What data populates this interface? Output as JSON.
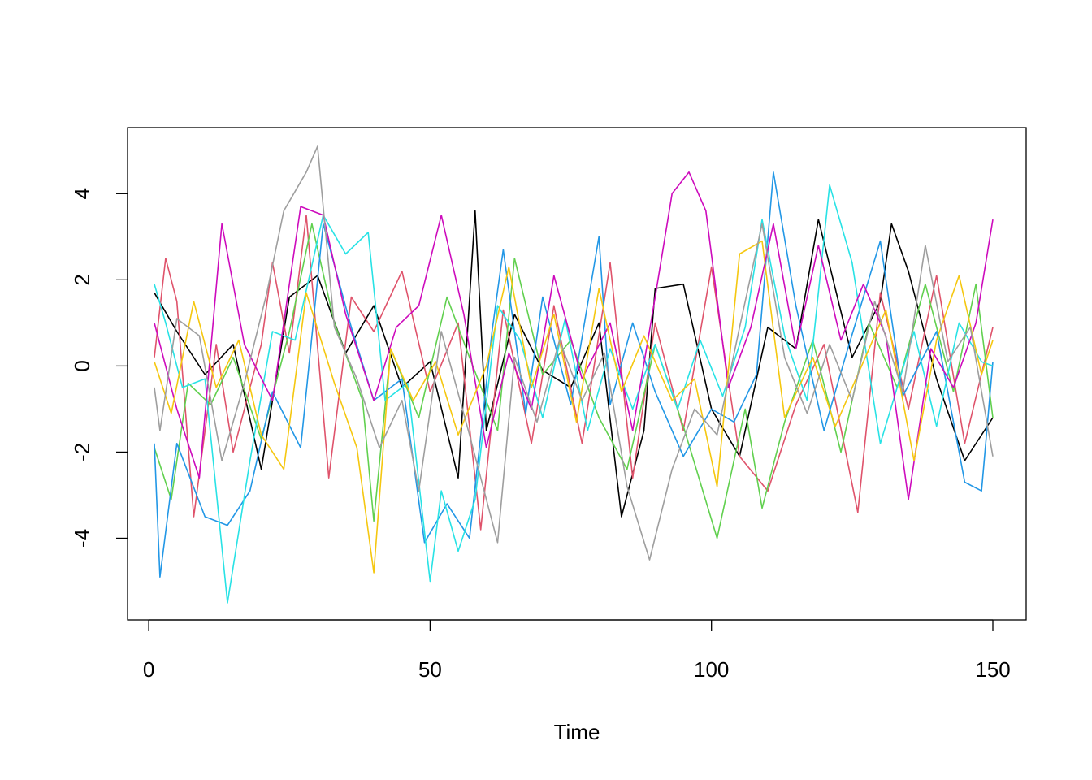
{
  "chart_data": {
    "type": "line",
    "title": "",
    "xlabel": "Time",
    "ylabel": "",
    "xlim": [
      1,
      150
    ],
    "ylim": [
      -5.5,
      5.1
    ],
    "x_ticks": [
      "0",
      "50",
      "100",
      "150"
    ],
    "y_ticks": [
      "-4",
      "-2",
      "0",
      "2",
      "4"
    ],
    "grid": false,
    "legend": "none",
    "series": [
      {
        "color": "#000000",
        "x": [
          1,
          5,
          10,
          15,
          20,
          25,
          30,
          35,
          40,
          45,
          50,
          55,
          58,
          60,
          65,
          70,
          75,
          80,
          84,
          88,
          90,
          95,
          100,
          105,
          110,
          115,
          119,
          125,
          130,
          132,
          135,
          140,
          145,
          150
        ],
        "values": [
          1.7,
          0.8,
          -0.2,
          0.5,
          -2.4,
          1.6,
          2.1,
          0.3,
          1.4,
          -0.5,
          0.1,
          -2.6,
          3.6,
          -1.5,
          1.2,
          -0.1,
          -0.5,
          1.0,
          -3.5,
          -1.5,
          1.8,
          1.9,
          -1.0,
          -2.1,
          0.9,
          0.4,
          3.4,
          0.2,
          1.5,
          3.3,
          2.2,
          -0.3,
          -2.2,
          -1.2
        ]
      },
      {
        "color": "#DF536B",
        "x": [
          1,
          3,
          5,
          8,
          12,
          15,
          20,
          22,
          25,
          28,
          32,
          36,
          40,
          45,
          50,
          55,
          59,
          63,
          68,
          72,
          77,
          82,
          86,
          90,
          95,
          100,
          105,
          110,
          115,
          120,
          126,
          130,
          135,
          140,
          145,
          150
        ],
        "values": [
          0.2,
          2.5,
          1.5,
          -3.5,
          0.5,
          -2.0,
          0.5,
          2.4,
          0.3,
          3.5,
          -2.6,
          1.6,
          0.8,
          2.2,
          -0.6,
          1.0,
          -3.8,
          1.3,
          -1.8,
          1.4,
          -1.8,
          2.4,
          -2.6,
          1.0,
          -1.5,
          2.3,
          -2.1,
          -2.9,
          -0.9,
          0.5,
          -3.4,
          1.7,
          -1.0,
          2.1,
          -1.8,
          0.9
        ]
      },
      {
        "color": "#61D04F",
        "x": [
          1,
          4,
          7,
          11,
          15,
          20,
          25,
          29,
          33,
          38,
          40,
          43,
          48,
          53,
          57,
          62,
          65,
          70,
          75,
          80,
          85,
          90,
          95,
          101,
          106,
          109,
          113,
          118,
          123,
          128,
          133,
          138,
          143,
          147,
          150
        ],
        "values": [
          -1.9,
          -3.1,
          -0.4,
          -0.9,
          0.2,
          -1.7,
          0.8,
          3.3,
          1.0,
          -0.8,
          -3.6,
          0.4,
          -1.2,
          1.6,
          0.2,
          -1.5,
          2.5,
          -0.2,
          0.6,
          -1.2,
          -2.4,
          0.5,
          -1.4,
          -4.0,
          -1.0,
          -3.3,
          -1.3,
          0.6,
          -2.0,
          1.0,
          -0.5,
          1.9,
          -0.6,
          1.9,
          -1.2
        ]
      },
      {
        "color": "#2297E6",
        "x": [
          1,
          2,
          5,
          10,
          14,
          18,
          22,
          27,
          31,
          36,
          40,
          45,
          49,
          53,
          57,
          61,
          63,
          67,
          70,
          75,
          80,
          82,
          86,
          90,
          95,
          100,
          104,
          108,
          111,
          115,
          120,
          124,
          130,
          134,
          140,
          145,
          148,
          150
        ],
        "values": [
          -1.8,
          -4.9,
          -1.8,
          -3.5,
          -3.7,
          -2.9,
          -0.6,
          -1.9,
          3.3,
          0.9,
          -0.8,
          -0.3,
          -4.1,
          -3.2,
          -4.0,
          0.8,
          2.7,
          -1.1,
          1.6,
          -0.9,
          3.0,
          -0.9,
          1.0,
          -0.6,
          -2.1,
          -1.0,
          -1.3,
          -0.2,
          4.5,
          1.4,
          -1.5,
          0.3,
          2.9,
          -0.7,
          0.8,
          -2.7,
          -2.9,
          0.1
        ]
      },
      {
        "color": "#28E2E5",
        "x": [
          1,
          3,
          6,
          10,
          14,
          18,
          22,
          26,
          31,
          35,
          39,
          42,
          46,
          50,
          52,
          55,
          58,
          62,
          66,
          70,
          74,
          78,
          82,
          86,
          90,
          94,
          98,
          102,
          106,
          109,
          113,
          117,
          121,
          125,
          130,
          136,
          140,
          144,
          148,
          150
        ],
        "values": [
          1.9,
          1.0,
          -0.5,
          -0.3,
          -5.5,
          -2.2,
          0.8,
          0.6,
          3.5,
          2.6,
          3.1,
          -0.8,
          -0.4,
          -5.0,
          -2.9,
          -4.3,
          -3.1,
          1.4,
          0.6,
          -1.2,
          1.1,
          -1.5,
          0.4,
          -1.0,
          0.5,
          -1.0,
          0.6,
          -0.7,
          0.9,
          3.4,
          0.7,
          -0.8,
          4.2,
          2.4,
          -1.8,
          0.8,
          -1.4,
          1.0,
          0.1,
          0.0
        ]
      },
      {
        "color": "#CD0BBC",
        "x": [
          1,
          5,
          9,
          13,
          17,
          22,
          27,
          31,
          35,
          40,
          44,
          48,
          52,
          56,
          60,
          64,
          68,
          72,
          77,
          82,
          86,
          90,
          93,
          96,
          99,
          103,
          107,
          111,
          115,
          119,
          123,
          127,
          131,
          135,
          139,
          143,
          147,
          150
        ],
        "values": [
          1.0,
          -1.0,
          -2.6,
          3.3,
          0.5,
          -0.8,
          3.7,
          3.5,
          1.2,
          -0.8,
          0.9,
          1.4,
          3.5,
          1.2,
          -1.9,
          0.3,
          -1.0,
          2.1,
          -0.3,
          1.0,
          -1.5,
          1.6,
          4.0,
          4.5,
          3.6,
          -0.5,
          0.9,
          3.3,
          0.4,
          2.8,
          0.6,
          1.9,
          0.7,
          -3.1,
          0.4,
          -0.5,
          1.0,
          3.4
        ]
      },
      {
        "color": "#F5C710",
        "x": [
          1,
          4,
          8,
          12,
          16,
          20,
          24,
          28,
          33,
          37,
          40,
          43,
          47,
          51,
          55,
          60,
          64,
          68,
          72,
          76,
          80,
          84,
          88,
          93,
          97,
          101,
          105,
          109,
          113,
          118,
          122,
          126,
          131,
          136,
          140,
          144,
          148,
          150
        ],
        "values": [
          0.1,
          -1.1,
          1.5,
          -0.5,
          0.6,
          -1.6,
          -2.4,
          1.7,
          -0.4,
          -1.9,
          -4.8,
          0.4,
          -0.8,
          0.1,
          -1.6,
          0.0,
          2.3,
          -0.5,
          1.2,
          -1.3,
          1.8,
          -0.6,
          0.7,
          -0.8,
          -0.3,
          -2.8,
          2.6,
          2.9,
          -1.2,
          0.2,
          -1.4,
          -0.2,
          1.3,
          -2.2,
          0.6,
          2.1,
          -0.2,
          0.6
        ]
      },
      {
        "color": "#9E9E9E",
        "x": [
          1,
          2,
          5,
          9,
          13,
          17,
          21,
          24,
          28,
          30,
          33,
          37,
          41,
          45,
          48,
          52,
          57,
          62,
          65,
          69,
          73,
          77,
          81,
          85,
          89,
          93,
          97,
          101,
          105,
          109,
          113,
          117,
          121,
          125,
          129,
          134,
          138,
          142,
          146,
          150
        ],
        "values": [
          -0.5,
          -1.5,
          1.1,
          0.7,
          -2.2,
          -0.4,
          1.7,
          3.6,
          4.5,
          5.1,
          0.9,
          -0.3,
          -1.9,
          -0.8,
          -2.9,
          0.8,
          -1.6,
          -4.1,
          0.2,
          -1.3,
          0.6,
          -0.8,
          0.3,
          -2.8,
          -4.5,
          -2.4,
          -1.0,
          -1.6,
          0.9,
          3.3,
          0.2,
          -1.1,
          0.5,
          -0.8,
          1.5,
          -0.6,
          2.8,
          0.1,
          0.9,
          -2.1
        ]
      }
    ]
  }
}
